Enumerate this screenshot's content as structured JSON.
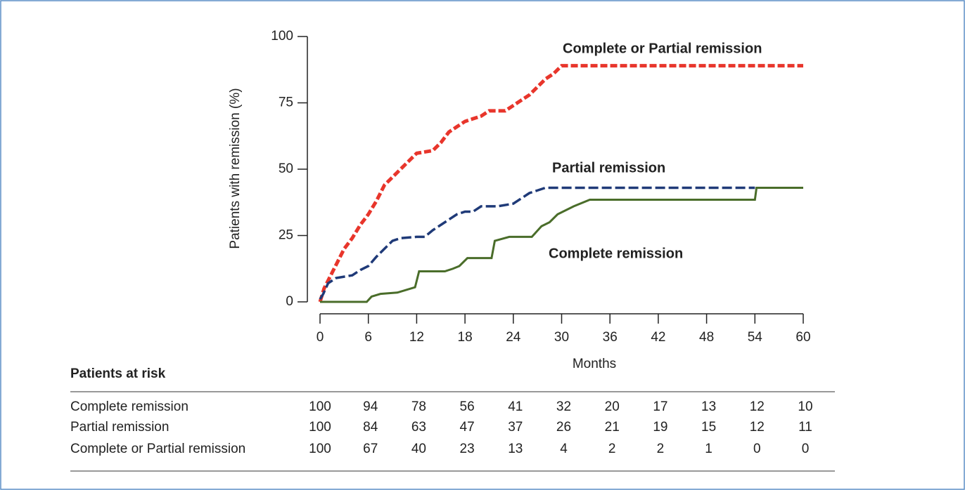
{
  "chart_data": {
    "type": "line",
    "y_label": "Patients with remission (%)",
    "x_label": "Months",
    "xlim": [
      0,
      60
    ],
    "xticks": [
      0,
      6,
      12,
      18,
      24,
      30,
      36,
      42,
      48,
      54,
      60
    ],
    "ylim": [
      0,
      100
    ],
    "yticks": [
      0,
      25,
      50,
      75,
      100
    ],
    "series": [
      {
        "name": "Complete or Partial remission",
        "color": "#e8352b",
        "x": [
          0,
          0.5,
          1,
          1.5,
          2,
          2.5,
          3,
          4,
          5,
          6,
          7,
          8,
          9,
          10,
          11,
          12,
          14,
          15,
          16,
          17,
          18,
          19,
          20,
          21,
          23,
          24,
          25,
          26,
          27,
          28,
          29,
          30,
          60
        ],
        "values": [
          0,
          5,
          8,
          11,
          14,
          17,
          20,
          24,
          29,
          33,
          38,
          44,
          47,
          50,
          53,
          56,
          57,
          60,
          64,
          66,
          68,
          69,
          70,
          72,
          72,
          74,
          76,
          78,
          81,
          84,
          86,
          89,
          89
        ]
      },
      {
        "name": "Partial remission",
        "color": "#1f3a78",
        "x": [
          0,
          0.4,
          1,
          2,
          3,
          4,
          5,
          6,
          7,
          8,
          9,
          10,
          12,
          13,
          14,
          15,
          16,
          17,
          18,
          19,
          20,
          22,
          24,
          25,
          26,
          27,
          28,
          30,
          36,
          54
        ],
        "values": [
          1,
          3,
          7,
          9,
          9.5,
          10,
          12,
          13.5,
          17,
          20,
          23,
          24,
          24.5,
          24.5,
          27,
          29,
          31,
          33,
          34,
          34,
          36,
          36,
          37,
          39,
          41,
          42,
          43,
          43,
          43,
          43
        ]
      },
      {
        "name": "Complete remission",
        "color": "#4a6d2a",
        "x": [
          0,
          5.8,
          6.4,
          7.5,
          9.6,
          11.8,
          12.3,
          15.5,
          16.5,
          17.3,
          18.3,
          21.3,
          21.7,
          23.5,
          26.3,
          27.5,
          28.5,
          29.5,
          31.5,
          33.5,
          36,
          54,
          54.2,
          60
        ],
        "values": [
          0,
          0,
          2,
          3,
          3.5,
          5.5,
          11.5,
          11.5,
          12.5,
          13.5,
          16.5,
          16.5,
          23,
          24.5,
          24.5,
          28.5,
          30,
          33,
          36,
          38.5,
          38.5,
          38.5,
          43,
          43
        ]
      }
    ],
    "risk_table": {
      "title": "Patients at risk",
      "rows": [
        {
          "name": "Complete remission",
          "values": [
            100,
            94,
            78,
            56,
            41,
            32,
            20,
            17,
            13,
            12,
            10
          ]
        },
        {
          "name": "Partial remission",
          "values": [
            100,
            84,
            63,
            47,
            37,
            26,
            21,
            19,
            15,
            12,
            11
          ]
        },
        {
          "name": "Complete or Partial remission",
          "values": [
            100,
            67,
            40,
            23,
            13,
            4,
            2,
            2,
            1,
            0,
            0
          ]
        }
      ]
    }
  }
}
